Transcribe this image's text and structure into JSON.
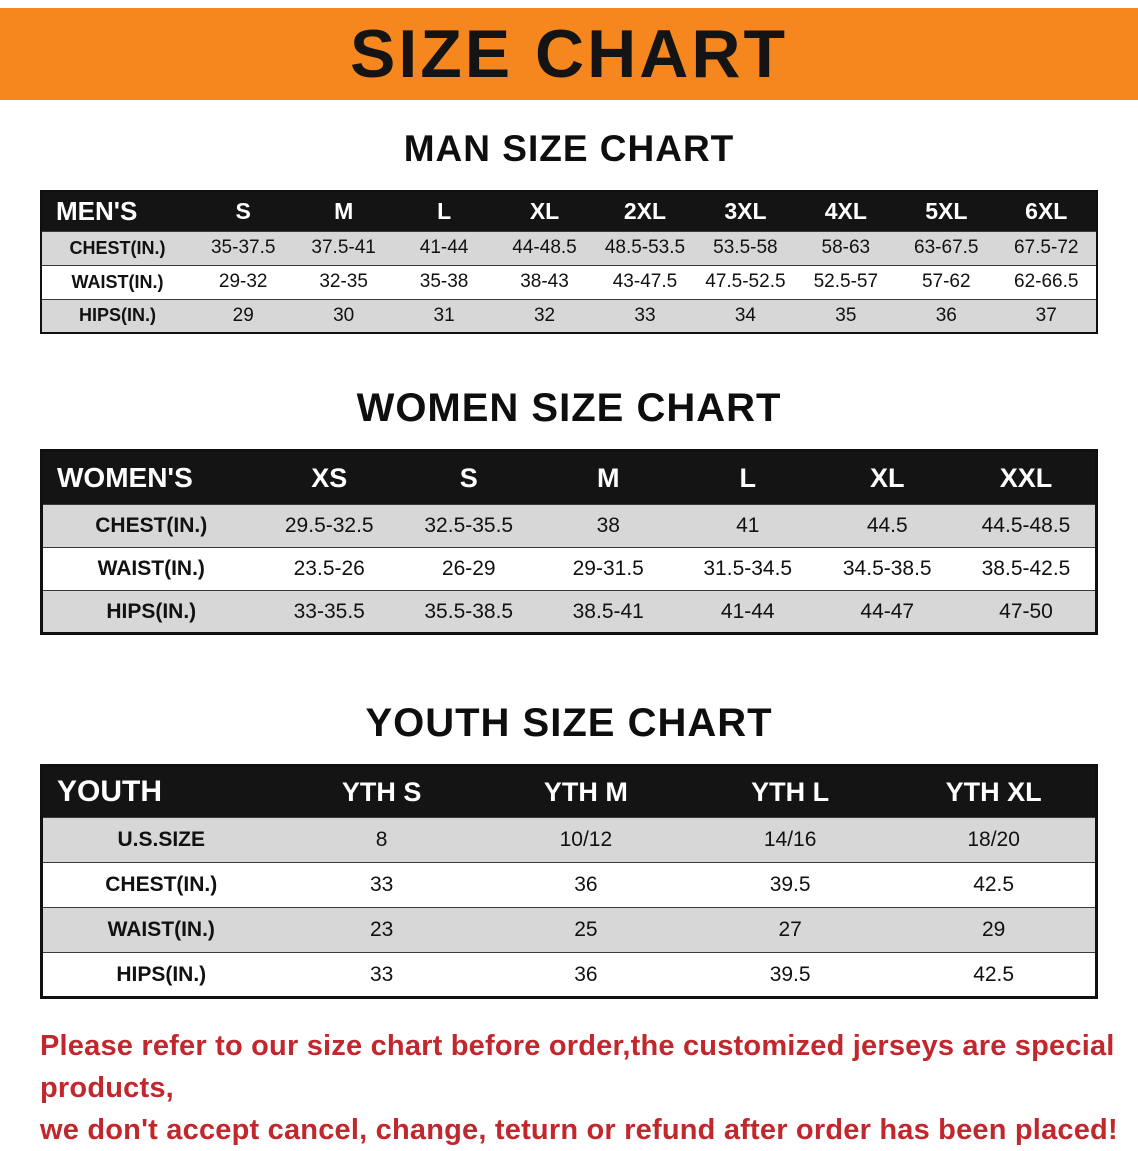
{
  "banner": {
    "title": "SIZE CHART"
  },
  "sections": [
    {
      "heading": "MAN SIZE CHART",
      "table": {
        "name": "mens-size-table",
        "header": [
          "MEN'S",
          "S",
          "M",
          "L",
          "XL",
          "2XL",
          "3XL",
          "4XL",
          "5XL",
          "6XL"
        ],
        "rows": [
          {
            "label": "CHEST(IN.)",
            "values": [
              "35-37.5",
              "37.5-41",
              "41-44",
              "44-48.5",
              "48.5-53.5",
              "53.5-58",
              "58-63",
              "63-67.5",
              "67.5-72"
            ]
          },
          {
            "label": "WAIST(IN.)",
            "values": [
              "29-32",
              "32-35",
              "35-38",
              "38-43",
              "43-47.5",
              "47.5-52.5",
              "52.5-57",
              "57-62",
              "62-66.5"
            ]
          },
          {
            "label": "HIPS(IN.)",
            "values": [
              "29",
              "30",
              "31",
              "32",
              "33",
              "34",
              "35",
              "36",
              "37"
            ]
          }
        ]
      }
    },
    {
      "heading": "WOMEN SIZE CHART",
      "table": {
        "name": "womens-size-table",
        "header": [
          "WOMEN'S",
          "XS",
          "S",
          "M",
          "L",
          "XL",
          "XXL"
        ],
        "rows": [
          {
            "label": "CHEST(IN.)",
            "values": [
              "29.5-32.5",
              "32.5-35.5",
              "38",
              "41",
              "44.5",
              "44.5-48.5"
            ]
          },
          {
            "label": "WAIST(IN.)",
            "values": [
              "23.5-26",
              "26-29",
              "29-31.5",
              "31.5-34.5",
              "34.5-38.5",
              "38.5-42.5"
            ]
          },
          {
            "label": "HIPS(IN.)",
            "values": [
              "33-35.5",
              "35.5-38.5",
              "38.5-41",
              "41-44",
              "44-47",
              "47-50"
            ]
          }
        ]
      }
    },
    {
      "heading": "YOUTH SIZE CHART",
      "table": {
        "name": "youth-size-table",
        "header": [
          "YOUTH",
          "YTH S",
          "YTH M",
          "YTH L",
          "YTH XL"
        ],
        "rows": [
          {
            "label": "U.S.SIZE",
            "values": [
              "8",
              "10/12",
              "14/16",
              "18/20"
            ]
          },
          {
            "label": "CHEST(IN.)",
            "values": [
              "33",
              "36",
              "39.5",
              "42.5"
            ]
          },
          {
            "label": "WAIST(IN.)",
            "values": [
              "23",
              "25",
              "27",
              "29"
            ]
          },
          {
            "label": "HIPS(IN.)",
            "values": [
              "33",
              "36",
              "39.5",
              "42.5"
            ]
          }
        ]
      }
    }
  ],
  "footer": {
    "line1": "Please refer to our size chart before order,the customized jerseys are special products,",
    "line2": "we don't accept cancel, change, teturn or refund after order has been placed!"
  },
  "colors": {
    "banner_bg": "#f6871f",
    "table_header_bg": "#141414",
    "row_stripe": "#d7d7d7",
    "notice_text": "#c1272d"
  }
}
